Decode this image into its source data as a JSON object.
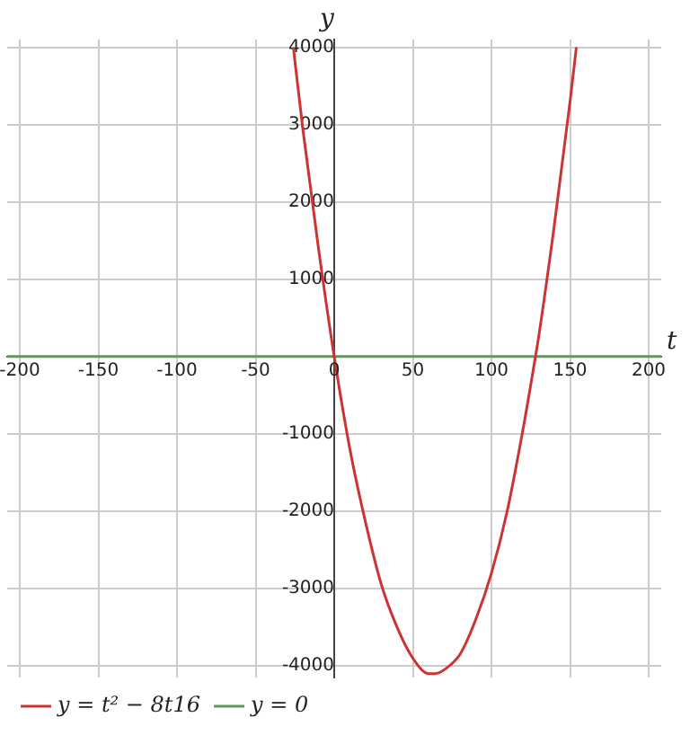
{
  "chart_data": {
    "type": "line",
    "xlabel": "t",
    "ylabel": "y",
    "xlim": [
      -208,
      208
    ],
    "ylim": [
      -4150,
      4100
    ],
    "xticks": [
      -200,
      -150,
      -100,
      -50,
      {
        "value": 0,
        "label": "0"
      },
      50,
      100,
      150,
      200
    ],
    "yticks": [
      -4000,
      -3000,
      -2000,
      -1000,
      {
        "value": 0,
        "label": null
      },
      1000,
      2000,
      3000,
      4000
    ],
    "grid": true,
    "legend": "bottom left",
    "marker": "none",
    "line_style": "solid",
    "series": [
      {
        "name": "y = t² − 8t16",
        "color": "#cc3333",
        "x": [
          -26,
          -20,
          -10,
          0,
          10,
          20,
          30,
          40,
          50,
          60,
          64,
          70,
          80,
          90,
          100,
          110,
          120,
          128,
          130,
          140,
          150,
          154
        ],
        "values": [
          4000,
          2950,
          1400,
          0,
          -1200,
          -2150,
          -2950,
          -3500,
          -3900,
          -4100,
          -4100,
          -4050,
          -3850,
          -3400,
          -2800,
          -2000,
          -950,
          0,
          250,
          1700,
          3300,
          4000
        ]
      },
      {
        "name": "y = 0",
        "color": "#5a9a5a",
        "x": [
          -208,
          208
        ],
        "values": [
          0,
          0
        ]
      }
    ]
  }
}
